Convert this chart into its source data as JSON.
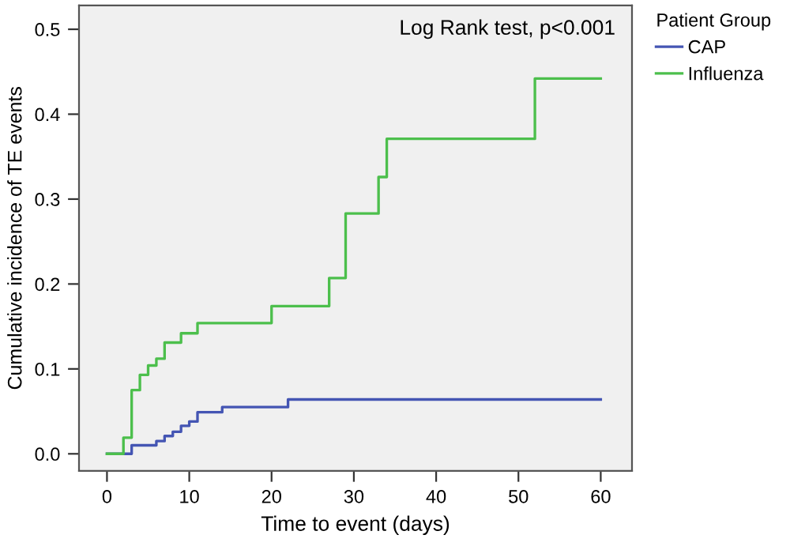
{
  "chart_data": {
    "type": "step",
    "xlabel": "Time to event (days)",
    "ylabel": "Cumulative incidence of TE events",
    "legend_title": "Patient Group",
    "legend": "right",
    "annotations": [
      "Log Rank test, p<0.001"
    ],
    "xlim": [
      -3.4,
      63.8
    ],
    "ylim": [
      -0.02,
      0.528
    ],
    "xticks": [
      0,
      10,
      20,
      30,
      40,
      50,
      60
    ],
    "yticks": [
      {
        "value": 0,
        "label": "0.0"
      },
      {
        "value": 0.1,
        "label": "0.1"
      },
      {
        "value": 0.2,
        "label": "0.2"
      },
      {
        "value": 0.3,
        "label": "0.3"
      },
      {
        "value": 0.4,
        "label": "0.4"
      },
      {
        "value": 0.5,
        "label": "0.5"
      }
    ],
    "grid": false,
    "series": [
      {
        "name": "CAP",
        "color": "#4455b3",
        "x": [
          0,
          3,
          6,
          7,
          8,
          9,
          10,
          11,
          14,
          22,
          60
        ],
        "values": [
          0,
          0.01,
          0.015,
          0.021,
          0.026,
          0.033,
          0.038,
          0.049,
          0.055,
          0.064,
          0.064
        ]
      },
      {
        "name": "Influenza",
        "color": "#4cbf4c",
        "x": [
          0,
          2,
          3,
          4,
          5,
          6,
          7,
          9,
          11,
          20,
          27,
          29,
          33,
          34,
          52,
          60
        ],
        "values": [
          0,
          0.019,
          0.075,
          0.093,
          0.104,
          0.112,
          0.131,
          0.142,
          0.154,
          0.174,
          0.207,
          0.283,
          0.326,
          0.371,
          0.442,
          0.442
        ]
      }
    ]
  }
}
